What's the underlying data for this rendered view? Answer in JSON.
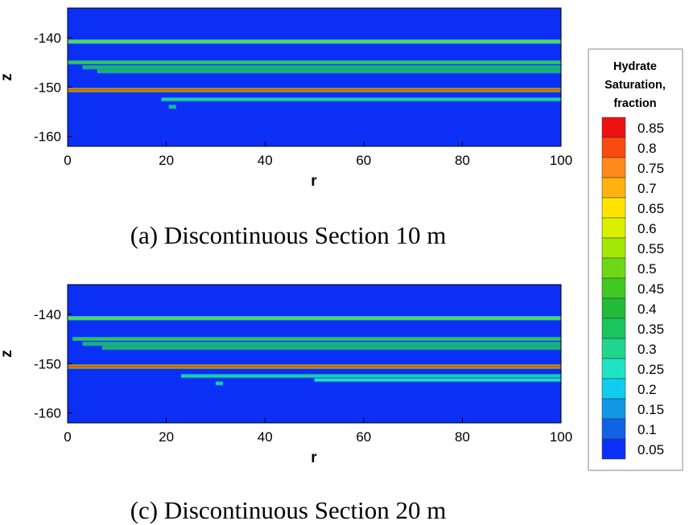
{
  "chart_data": [
    {
      "type": "heatmap",
      "caption": "(a) Discontinuous Section 10 m",
      "xlabel": "r",
      "ylabel": "z",
      "xlim": [
        0,
        100
      ],
      "ylim": [
        -162,
        -134
      ],
      "xticks": [
        0,
        20,
        40,
        60,
        80,
        100
      ],
      "yticks": [
        -140,
        -150,
        -160
      ],
      "background_saturation": 0.05,
      "layers": [
        {
          "z": -140.8,
          "r_start": 0,
          "r_end": 100,
          "saturation": 0.5
        },
        {
          "z": -145.0,
          "r_start": 0,
          "r_end": 100,
          "saturation": 0.45
        },
        {
          "z": -146.0,
          "r_start": 3,
          "r_end": 100,
          "saturation": 0.4
        },
        {
          "z": -146.8,
          "r_start": 6,
          "r_end": 100,
          "saturation": 0.4
        },
        {
          "z": -150.6,
          "r_start": 0,
          "r_end": 100,
          "saturation": 0.8
        },
        {
          "z": -152.5,
          "r_start": 19,
          "r_end": 100,
          "saturation": 0.3
        },
        {
          "z": -154.0,
          "r_start": 20.5,
          "r_end": 22,
          "saturation": 0.35
        }
      ]
    },
    {
      "type": "heatmap",
      "caption": "(c) Discontinuous Section 20 m",
      "xlabel": "r",
      "ylabel": "z",
      "xlim": [
        0,
        100
      ],
      "ylim": [
        -162,
        -134
      ],
      "xticks": [
        0,
        20,
        40,
        60,
        80,
        100
      ],
      "yticks": [
        -140,
        -150,
        -160
      ],
      "background_saturation": 0.05,
      "layers": [
        {
          "z": -140.8,
          "r_start": 0,
          "r_end": 100,
          "saturation": 0.5
        },
        {
          "z": -145.0,
          "r_start": 1,
          "r_end": 100,
          "saturation": 0.45
        },
        {
          "z": -146.0,
          "r_start": 3,
          "r_end": 100,
          "saturation": 0.4
        },
        {
          "z": -146.8,
          "r_start": 7,
          "r_end": 100,
          "saturation": 0.4
        },
        {
          "z": -150.6,
          "r_start": 0,
          "r_end": 100,
          "saturation": 0.8
        },
        {
          "z": -152.5,
          "r_start": 23,
          "r_end": 100,
          "saturation": 0.3
        },
        {
          "z": -153.3,
          "r_start": 50,
          "r_end": 100,
          "saturation": 0.25
        },
        {
          "z": -154.0,
          "r_start": 30,
          "r_end": 31.5,
          "saturation": 0.3
        }
      ]
    }
  ],
  "legend": {
    "title_lines": [
      "Hydrate",
      "Saturation,",
      "fraction"
    ],
    "levels": [
      "0.85",
      "0.8",
      "0.75",
      "0.7",
      "0.65",
      "0.6",
      "0.55",
      "0.5",
      "0.45",
      "0.4",
      "0.35",
      "0.3",
      "0.25",
      "0.2",
      "0.15",
      "0.1",
      "0.05"
    ],
    "colors": [
      "#ee1111",
      "#fb4a10",
      "#ff8a1a",
      "#ffb210",
      "#ffe400",
      "#d9f000",
      "#a4e605",
      "#6ed816",
      "#3fc922",
      "#22bb3a",
      "#1ac45e",
      "#20d58e",
      "#1fe4c4",
      "#10cdf0",
      "#1097e6",
      "#1262e6",
      "#0c2ff5"
    ]
  }
}
